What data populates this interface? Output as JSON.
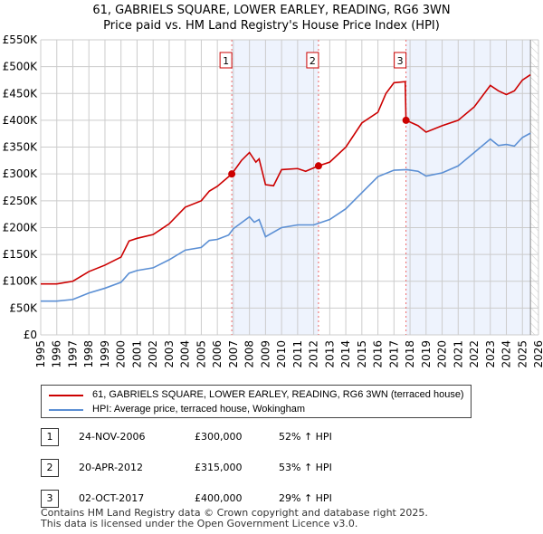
{
  "title": "61, GABRIELS SQUARE, LOWER EARLEY, READING, RG6 3WN",
  "subtitle": "Price paid vs. HM Land Registry's House Price Index (HPI)",
  "chart_data": {
    "type": "line",
    "xlim": [
      1995,
      2026
    ],
    "ylim": [
      0,
      550000
    ],
    "y_ticks": [
      {
        "v": 0,
        "l": "£0"
      },
      {
        "v": 50000,
        "l": "£50K"
      },
      {
        "v": 100000,
        "l": "£100K"
      },
      {
        "v": 150000,
        "l": "£150K"
      },
      {
        "v": 200000,
        "l": "£200K"
      },
      {
        "v": 250000,
        "l": "£250K"
      },
      {
        "v": 300000,
        "l": "£300K"
      },
      {
        "v": 350000,
        "l": "£350K"
      },
      {
        "v": 400000,
        "l": "£400K"
      },
      {
        "v": 450000,
        "l": "£450K"
      },
      {
        "v": 500000,
        "l": "£500K"
      },
      {
        "v": 550000,
        "l": "£550K"
      }
    ],
    "x_ticks": [
      "1995",
      "1996",
      "1997",
      "1998",
      "1999",
      "2000",
      "2001",
      "2002",
      "2003",
      "2004",
      "2005",
      "2006",
      "2007",
      "2008",
      "2009",
      "2010",
      "2011",
      "2012",
      "2013",
      "2014",
      "2015",
      "2016",
      "2017",
      "2018",
      "2019",
      "2020",
      "2021",
      "2022",
      "2023",
      "2024",
      "2025",
      "2026"
    ],
    "series": [
      {
        "name": "61, GABRIELS SQUARE, LOWER EARLEY, READING, RG6 3WN (terraced house)",
        "color": "#cc0000",
        "x": [
          1995,
          1996,
          1997,
          1998,
          1999,
          2000,
          2000.5,
          2001,
          2002,
          2003,
          2004,
          2005,
          2005.5,
          2006,
          2006.9,
          2007.5,
          2008,
          2008.4,
          2008.6,
          2009,
          2009.5,
          2010,
          2011,
          2011.5,
          2012.3,
          2013,
          2014,
          2015,
          2016,
          2016.5,
          2017,
          2017.7,
          2017.75,
          2018.5,
          2019,
          2020,
          2021,
          2022,
          2023,
          2023.5,
          2024,
          2024.5,
          2025,
          2025.5
        ],
        "y": [
          95000,
          95000,
          100000,
          118000,
          130000,
          145000,
          175000,
          180000,
          187000,
          207000,
          238000,
          250000,
          268000,
          277000,
          300000,
          325000,
          340000,
          322000,
          328000,
          280000,
          278000,
          308000,
          310000,
          305000,
          315000,
          322000,
          350000,
          395000,
          415000,
          450000,
          470000,
          472000,
          400000,
          390000,
          378000,
          390000,
          400000,
          425000,
          465000,
          455000,
          448000,
          455000,
          475000,
          485000
        ]
      },
      {
        "name": "HPI: Average price, terraced house, Wokingham",
        "color": "#5b8fd4",
        "x": [
          1995,
          1996,
          1997,
          1998,
          1999,
          2000,
          2000.5,
          2001,
          2002,
          2003,
          2004,
          2005,
          2005.5,
          2006,
          2006.7,
          2007,
          2008,
          2008.3,
          2008.6,
          2009,
          2010,
          2011,
          2012,
          2013,
          2014,
          2015,
          2016,
          2017,
          2017.8,
          2018.5,
          2019,
          2020,
          2021,
          2022,
          2023,
          2023.5,
          2024,
          2024.5,
          2025,
          2025.5
        ],
        "y": [
          63000,
          63000,
          66000,
          78000,
          87000,
          98000,
          115000,
          120000,
          125000,
          140000,
          158000,
          163000,
          176000,
          178000,
          186000,
          198000,
          220000,
          210000,
          215000,
          183000,
          200000,
          205000,
          205000,
          215000,
          235000,
          265000,
          295000,
          307000,
          308000,
          305000,
          296000,
          302000,
          315000,
          340000,
          365000,
          353000,
          355000,
          352000,
          368000,
          376000
        ]
      }
    ],
    "sales": [
      {
        "label": "1",
        "x": 2006.9,
        "y": 300000
      },
      {
        "label": "2",
        "x": 2012.3,
        "y": 315000
      },
      {
        "label": "3",
        "x": 2017.75,
        "y": 400000
      }
    ],
    "data_end": 2025.5
  },
  "table": [
    {
      "n": "1",
      "date": "24-NOV-2006",
      "price": "£300,000",
      "hpi": "52% ↑ HPI"
    },
    {
      "n": "2",
      "date": "20-APR-2012",
      "price": "£315,000",
      "hpi": "53% ↑ HPI"
    },
    {
      "n": "3",
      "date": "02-OCT-2017",
      "price": "£400,000",
      "hpi": "29% ↑ HPI"
    }
  ],
  "footer": [
    "Contains HM Land Registry data © Crown copyright and database right 2025.",
    "This data is licensed under the Open Government Licence v3.0."
  ]
}
